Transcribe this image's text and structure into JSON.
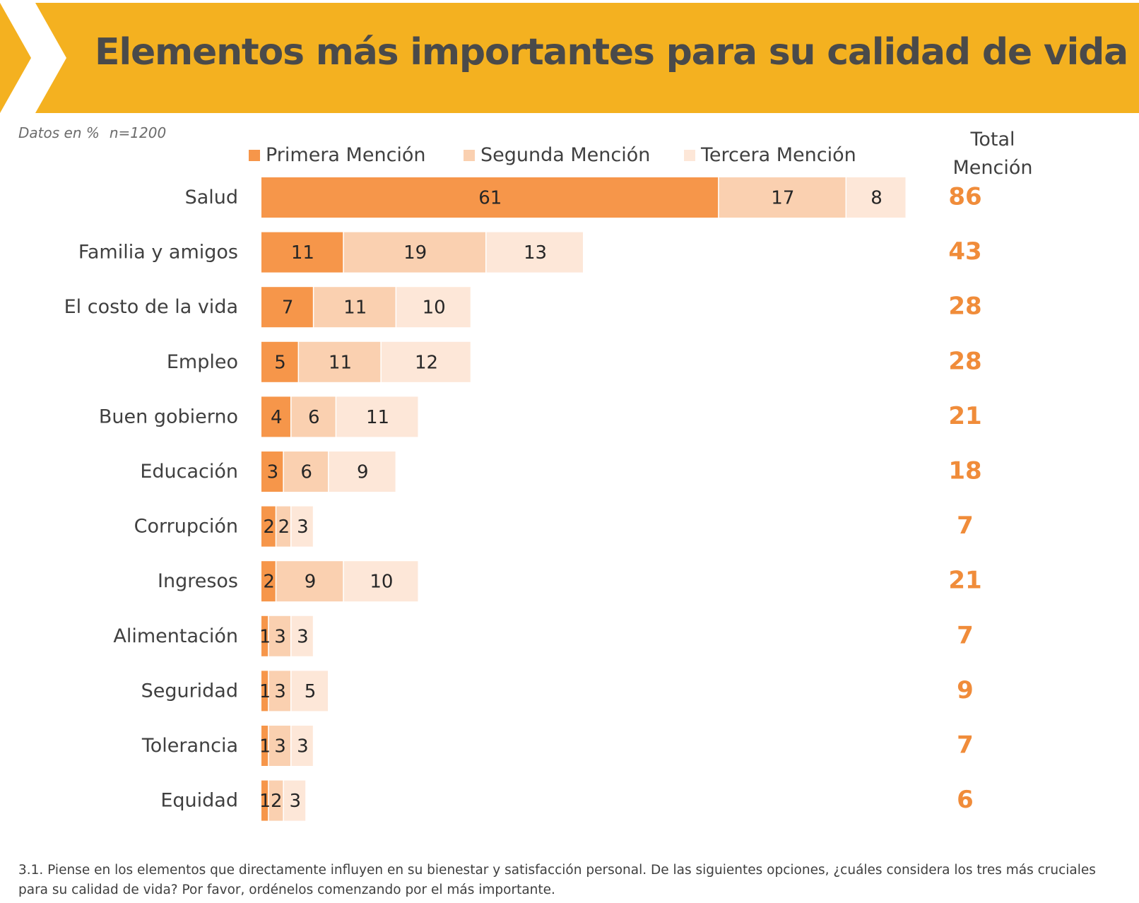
{
  "header": {
    "title": "Elementos más importantes para su calidad de vida",
    "banner_color": "#f4b120"
  },
  "meta": {
    "datos": "Datos en %",
    "sample": "n=1200"
  },
  "total_header": {
    "line1": "Total",
    "line2": "Mención"
  },
  "footnote": "3.1. Piense en los elementos que directamente influyen en su bienestar y satisfacción personal. De las siguientes opciones, ¿cuáles considera los tres más cruciales para su calidad de vida? Por favor, ordénelos comenzando por el más importante.",
  "chart_data": {
    "type": "bar",
    "orientation": "horizontal",
    "stacked": true,
    "title": "Elementos más importantes para su calidad de vida",
    "legend_position": "top",
    "grid": false,
    "xlim": [
      0,
      86
    ],
    "categories": [
      "Salud",
      "Familia y amigos",
      "El costo de la vida",
      "Empleo",
      "Buen gobierno",
      "Educación",
      "Corrupción",
      "Ingresos",
      "Alimentación",
      "Seguridad",
      "Tolerancia",
      "Equidad"
    ],
    "series": [
      {
        "name": "Primera Mención",
        "color": "#f6964a",
        "values": [
          61,
          11,
          7,
          5,
          4,
          3,
          2,
          2,
          1,
          1,
          1,
          1
        ]
      },
      {
        "name": "Segunda Mención",
        "color": "#fad0b0",
        "values": [
          17,
          19,
          11,
          11,
          6,
          6,
          2,
          9,
          3,
          3,
          3,
          2
        ]
      },
      {
        "name": "Tercera Mención",
        "color": "#fde7d8",
        "values": [
          8,
          13,
          10,
          12,
          11,
          9,
          3,
          10,
          3,
          5,
          3,
          3
        ]
      }
    ],
    "totals": [
      86,
      43,
      28,
      28,
      21,
      18,
      7,
      21,
      7,
      9,
      7,
      6
    ],
    "total_color": "#f08c3a"
  }
}
